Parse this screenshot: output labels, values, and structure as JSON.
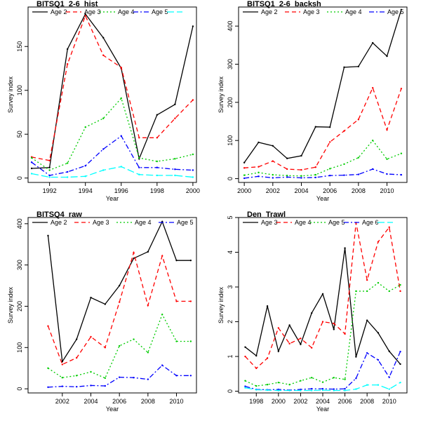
{
  "chart_data": [
    {
      "type": "line",
      "title": "BITSQ1_2-6_hist",
      "xlabel": "Year",
      "ylabel": "Survey index",
      "xlim": [
        1990.8,
        2000.2
      ],
      "ylim": [
        -5,
        195
      ],
      "xticks": [
        1992,
        1994,
        1996,
        1998,
        2000
      ],
      "yticks": [
        0,
        50,
        100,
        150
      ],
      "legend_position": "top",
      "x": [
        1991,
        1992,
        1993,
        1994,
        1995,
        1996,
        1997,
        1998,
        1999,
        2000
      ],
      "series": [
        {
          "name": "Age 2",
          "color": "#000000",
          "dash": "solid",
          "values": [
            11,
            12,
            147,
            187,
            160,
            125,
            22,
            72,
            84,
            173
          ]
        },
        {
          "name": "Age 3",
          "color": "#ff0000",
          "dash": "dashed",
          "values": [
            24,
            20,
            130,
            185,
            140,
            126,
            46,
            46,
            68,
            89
          ]
        },
        {
          "name": "Age 4",
          "color": "#00cc00",
          "dash": "dotted",
          "values": [
            23,
            9,
            17,
            58,
            68,
            91,
            23,
            19,
            22,
            27
          ]
        },
        {
          "name": "Age 5",
          "color": "#0000ff",
          "dash": "dotdash",
          "values": [
            18,
            3,
            7,
            14,
            33,
            48,
            12,
            12,
            10,
            9
          ]
        },
        {
          "name": "",
          "color": "#00ffff",
          "dash": "longdash",
          "values": [
            5,
            1,
            1,
            2,
            9,
            13,
            4,
            3,
            3,
            1
          ]
        }
      ]
    },
    {
      "type": "line",
      "title": "BITSQ1_2-6_backsh",
      "xlabel": "Year",
      "ylabel": "Survey index",
      "xlim": [
        1999.6,
        2011.4
      ],
      "ylim": [
        -10,
        450
      ],
      "xticks": [
        2000,
        2002,
        2004,
        2006,
        2008,
        2010
      ],
      "yticks": [
        0,
        100,
        200,
        300,
        400
      ],
      "legend_position": "top",
      "x": [
        2000,
        2001,
        2002,
        2003,
        2004,
        2005,
        2006,
        2007,
        2008,
        2009,
        2010,
        2011
      ],
      "series": [
        {
          "name": "Age 2",
          "color": "#000000",
          "dash": "solid",
          "values": [
            42,
            95,
            86,
            53,
            60,
            136,
            135,
            292,
            294,
            356,
            321,
            443
          ]
        },
        {
          "name": "Age 3",
          "color": "#ff0000",
          "dash": "dashed",
          "values": [
            28,
            31,
            46,
            25,
            23,
            30,
            96,
            125,
            155,
            238,
            128,
            236
          ]
        },
        {
          "name": "Age 4",
          "color": "#00cc00",
          "dash": "dotted",
          "values": [
            9,
            16,
            10,
            8,
            7,
            10,
            26,
            38,
            55,
            100,
            51,
            66
          ]
        },
        {
          "name": "Age 5",
          "color": "#0000ff",
          "dash": "dotdash",
          "values": [
            1,
            6,
            2,
            4,
            2,
            3,
            8,
            9,
            11,
            25,
            12,
            10
          ]
        }
      ]
    },
    {
      "type": "line",
      "title": "BITSQ4_raw",
      "xlabel": "Year",
      "ylabel": "Survey index",
      "xlim": [
        1999.6,
        2011.4
      ],
      "ylim": [
        -10,
        415
      ],
      "xticks": [
        2002,
        2004,
        2006,
        2008,
        2010
      ],
      "yticks": [
        0,
        100,
        200,
        300,
        400
      ],
      "legend_position": "top",
      "x": [
        2001,
        2002,
        2003,
        2004,
        2005,
        2006,
        2007,
        2008,
        2009,
        2010,
        2011
      ],
      "series": [
        {
          "name": "Age 2",
          "color": "#000000",
          "dash": "solid",
          "values": [
            371,
            66,
            120,
            221,
            205,
            250,
            316,
            332,
            405,
            311,
            311
          ]
        },
        {
          "name": "Age 3",
          "color": "#ff0000",
          "dash": "dashed",
          "values": [
            152,
            59,
            75,
            126,
            100,
            210,
            330,
            202,
            322,
            212,
            212
          ]
        },
        {
          "name": "Age 4",
          "color": "#00cc00",
          "dash": "dotted",
          "values": [
            50,
            27,
            32,
            41,
            26,
            104,
            120,
            88,
            180,
            115,
            115
          ]
        },
        {
          "name": "Age 5",
          "color": "#0000ff",
          "dash": "dotdash",
          "values": [
            4,
            6,
            5,
            8,
            7,
            28,
            27,
            23,
            57,
            32,
            32
          ]
        }
      ]
    },
    {
      "type": "line",
      "title": "Den_Trawl",
      "xlabel": "Year",
      "ylabel": "Survey index",
      "xlim": [
        1996.4,
        2011.6
      ],
      "ylim": [
        -0.05,
        5.0
      ],
      "xticks": [
        1998,
        2000,
        2002,
        2004,
        2006,
        2008,
        2010
      ],
      "yticks": [
        0,
        1,
        2,
        3,
        4,
        5
      ],
      "legend_position": "top",
      "x": [
        1997,
        1998,
        1999,
        2000,
        2001,
        2002,
        2003,
        2004,
        2005,
        2006,
        2007,
        2008,
        2009,
        2010,
        2011
      ],
      "series": [
        {
          "name": "Age 3",
          "color": "#000000",
          "dash": "solid",
          "values": [
            1.27,
            1.02,
            2.45,
            1.15,
            1.9,
            1.35,
            2.25,
            2.8,
            1.78,
            4.12,
            0.99,
            2.04,
            1.68,
            1.15,
            0.78
          ]
        },
        {
          "name": "Age 4",
          "color": "#ff0000",
          "dash": "dashed",
          "values": [
            1.0,
            0.66,
            0.95,
            1.82,
            1.37,
            1.52,
            1.25,
            2.0,
            1.95,
            1.65,
            4.85,
            3.2,
            4.3,
            4.72,
            2.88
          ]
        },
        {
          "name": "Age 5",
          "color": "#00cc00",
          "dash": "dotted",
          "values": [
            0.3,
            0.15,
            0.19,
            0.25,
            0.19,
            0.3,
            0.39,
            0.26,
            0.39,
            0.34,
            2.88,
            2.88,
            3.12,
            2.88,
            3.06
          ]
        },
        {
          "name": "Age 6",
          "color": "#0000ff",
          "dash": "dotdash",
          "values": [
            0.14,
            0.05,
            0.04,
            0.05,
            0.03,
            0.05,
            0.07,
            0.07,
            0.06,
            0.07,
            0.37,
            1.1,
            0.9,
            0.4,
            1.14
          ]
        },
        {
          "name": "",
          "color": "#00ffff",
          "dash": "longdash",
          "values": [
            0.1,
            0.04,
            0.03,
            0.02,
            0.02,
            0.02,
            0.02,
            0.03,
            0.02,
            0.02,
            0.06,
            0.18,
            0.18,
            0.06,
            0.25
          ]
        }
      ]
    }
  ]
}
